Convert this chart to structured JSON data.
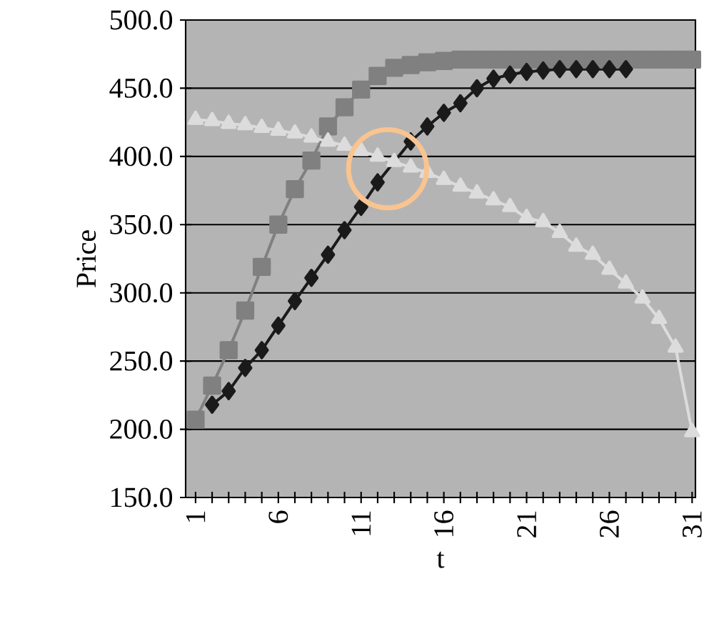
{
  "chart_data": {
    "type": "line",
    "xlabel": "t",
    "ylabel": "Price",
    "x": [
      1,
      2,
      3,
      4,
      5,
      6,
      7,
      8,
      9,
      10,
      11,
      12,
      13,
      14,
      15,
      16,
      17,
      18,
      19,
      20,
      21,
      22,
      23,
      24,
      25,
      26,
      27,
      28,
      29,
      30,
      31
    ],
    "series": [
      {
        "color": "#808080",
        "marker": "square",
        "values": [
          207,
          232,
          258,
          287,
          319,
          350,
          376,
          397,
          422,
          436,
          449,
          459,
          465,
          467,
          469,
          470,
          471,
          471,
          471,
          471,
          471,
          471,
          471,
          471,
          471,
          471,
          471,
          471,
          471,
          471,
          471
        ]
      },
      {
        "color": "#1a1a1a",
        "marker": "diamond",
        "values": [
          null,
          218,
          228,
          245,
          258,
          276,
          294,
          311,
          328,
          346,
          363,
          381,
          null,
          411,
          422,
          432,
          439,
          450,
          457,
          460,
          462,
          463,
          464,
          464,
          464,
          464,
          464,
          null,
          null,
          null,
          null
        ]
      },
      {
        "color": "#dcdcdc",
        "marker": "triangle",
        "values": [
          427,
          426,
          424,
          423,
          421,
          419,
          417,
          414,
          411,
          408,
          404,
          400,
          396,
          392,
          388,
          383,
          378,
          373,
          368,
          363,
          355,
          352,
          344,
          334,
          328,
          317,
          307,
          296,
          281,
          260,
          198
        ]
      }
    ],
    "xlim": [
      0.4,
      31.2
    ],
    "xticks": [
      1,
      {
        "value": 2,
        "label": null
      },
      {
        "value": 3,
        "label": null
      },
      {
        "value": 4,
        "label": null
      },
      {
        "value": 5,
        "label": null
      },
      6,
      {
        "value": 7,
        "label": null
      },
      {
        "value": 8,
        "label": null
      },
      {
        "value": 9,
        "label": null
      },
      {
        "value": 10,
        "label": null
      },
      11,
      {
        "value": 12,
        "label": null
      },
      {
        "value": 13,
        "label": null
      },
      {
        "value": 14,
        "label": null
      },
      {
        "value": 15,
        "label": null
      },
      16,
      {
        "value": 17,
        "label": null
      },
      {
        "value": 18,
        "label": null
      },
      {
        "value": 19,
        "label": null
      },
      {
        "value": 20,
        "label": null
      },
      21,
      {
        "value": 22,
        "label": null
      },
      {
        "value": 23,
        "label": null
      },
      {
        "value": 24,
        "label": null
      },
      {
        "value": 25,
        "label": null
      },
      26,
      {
        "value": 27,
        "label": null
      },
      {
        "value": 28,
        "label": null
      },
      {
        "value": 29,
        "label": null
      },
      {
        "value": 30,
        "label": null
      },
      31
    ],
    "ylim": [
      150,
      500
    ],
    "yticks": [
      {
        "value": 150,
        "label": "150.0"
      },
      {
        "value": 200,
        "label": "200.0"
      },
      {
        "value": 250,
        "label": "250.0"
      },
      {
        "value": 300,
        "label": "300.0"
      },
      {
        "value": 350,
        "label": "350.0"
      },
      {
        "value": 400,
        "label": "400.0"
      },
      {
        "value": 450,
        "label": "450.0"
      },
      {
        "value": 500,
        "label": "500.0"
      }
    ],
    "grid": "y"
  }
}
